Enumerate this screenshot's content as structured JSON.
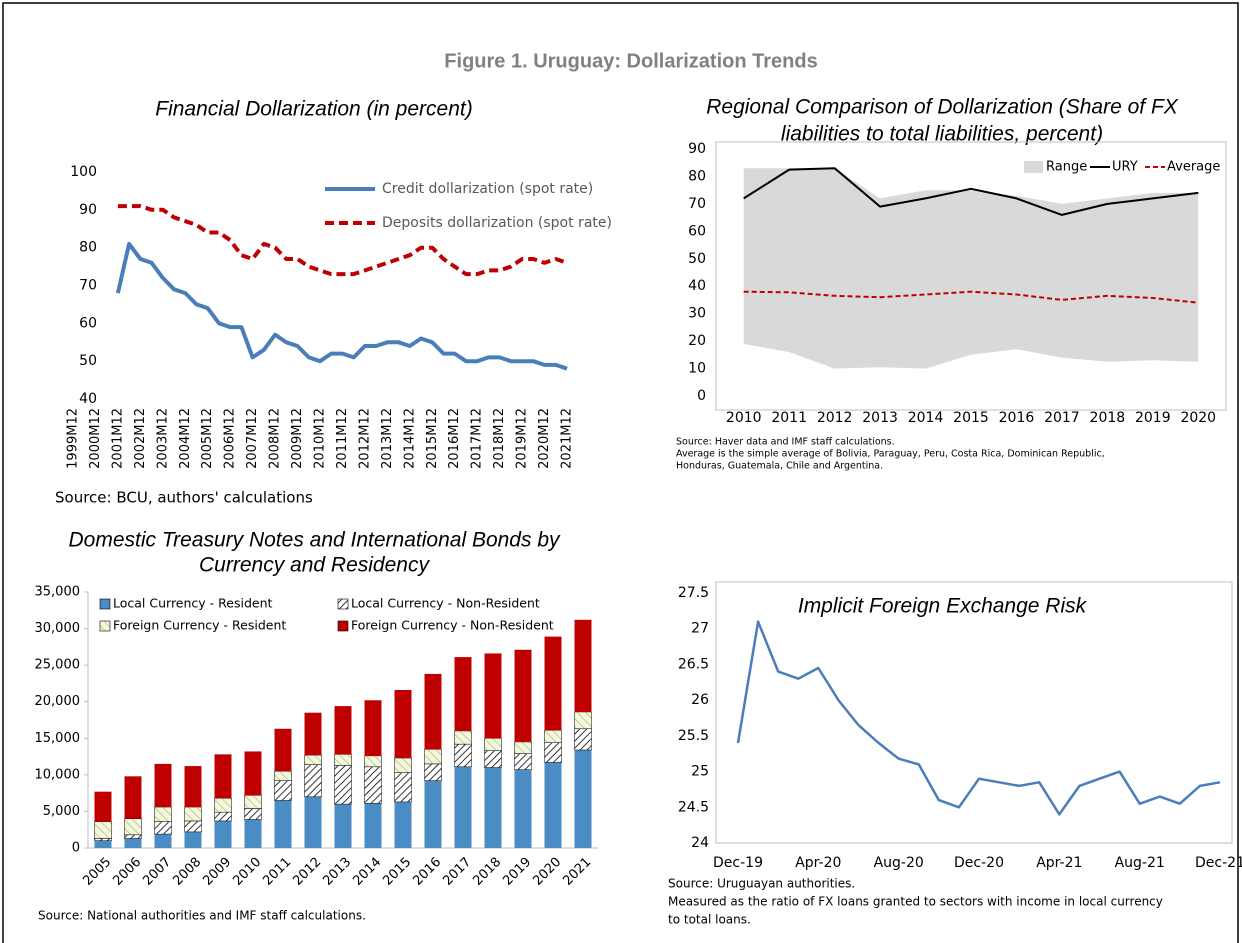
{
  "title": "Figure 1. Uruguay: Dollarization Trends",
  "chart_data": [
    {
      "type": "line",
      "title": "Financial Dollarization (in percent)",
      "source": "Source: BCU, authors' calculations",
      "categories": [
        "1999M12",
        null,
        "2000M12",
        null,
        "2001M12",
        null,
        "2002M12",
        null,
        "2003M12",
        null,
        "2004M12",
        null,
        "2005M12",
        null,
        "2006M12",
        null,
        "2007M12",
        null,
        "2008M12",
        null,
        "2009M12",
        null,
        "2010M12",
        null,
        "2011M12",
        null,
        "2012M12",
        null,
        "2013M12",
        null,
        "2014M12",
        null,
        "2015M12",
        null,
        "2016M12",
        null,
        "2017M12",
        null,
        "2018M12",
        null,
        "2019M12",
        null,
        "2020M12",
        null,
        "2021M12"
      ],
      "series": [
        {
          "name": "Credit dollarization (spot rate)",
          "color": "#4a7ebb",
          "dashed": false,
          "values": [
            null,
            null,
            null,
            null,
            68,
            81,
            77,
            76,
            72,
            69,
            68,
            65,
            64,
            60,
            59,
            59,
            51,
            53,
            57,
            55,
            54,
            51,
            50,
            52,
            52,
            51,
            54,
            54,
            55,
            55,
            54,
            56,
            55,
            52,
            52,
            50,
            50,
            51,
            51,
            50,
            50,
            50,
            49,
            49,
            48
          ]
        },
        {
          "name": "Deposits dollarization (spot rate)",
          "color": "#c00000",
          "dashed": true,
          "values": [
            null,
            null,
            null,
            null,
            91,
            91,
            91,
            90,
            90,
            88,
            87,
            86,
            84,
            84,
            82,
            78,
            77,
            81,
            80,
            77,
            77,
            75,
            74,
            73,
            73,
            73,
            74,
            75,
            76,
            77,
            78,
            80,
            80,
            77,
            75,
            73,
            73,
            74,
            74,
            75,
            77,
            77,
            76,
            77,
            76
          ]
        }
      ],
      "ylim": [
        40,
        100
      ],
      "yticks": [
        40,
        50,
        60,
        70,
        80,
        90,
        100
      ],
      "grid": false
    },
    {
      "type": "line",
      "title": [
        "Regional Comparison of Dollarization (Share of FX",
        "liabilities to total liabilities, percent)"
      ],
      "notes": [
        "Source: Haver data and IMF staff calculations.",
        "Average is the simple average of Bolivia, Paraguay, Peru, Costa Rica, Dominican Republic,",
        "Honduras, Guatemala, Chile and Argentina."
      ],
      "categories": [
        2010,
        2011,
        2012,
        2013,
        2014,
        2015,
        2016,
        2017,
        2018,
        2019,
        2020
      ],
      "series": [
        {
          "name": "Range",
          "color": "#d9d9d9",
          "range": true,
          "low": [
            19,
            16,
            10,
            10.5,
            10,
            15,
            17,
            14,
            12.5,
            13,
            12.5
          ],
          "high": [
            83,
            83,
            83,
            72,
            75,
            75,
            73,
            70,
            72,
            74,
            74
          ]
        },
        {
          "name": "URY",
          "color": "#000000",
          "dashed": false,
          "values": [
            72,
            82.5,
            83,
            69,
            72,
            75.5,
            72,
            66,
            70,
            72,
            74
          ]
        },
        {
          "name": "Average",
          "color": "#c00000",
          "dashed": true,
          "values": [
            38,
            37.8,
            36.5,
            36,
            37,
            38,
            37,
            35,
            36.5,
            35.7,
            34
          ]
        }
      ],
      "ylim": [
        0,
        90
      ],
      "yticks": [
        0,
        10,
        20,
        30,
        40,
        50,
        60,
        70,
        80,
        90
      ],
      "grid": false
    },
    {
      "type": "bar",
      "stacked": true,
      "title": [
        "Domestic Treasury Notes and International Bonds by",
        "Currency and Residency"
      ],
      "source": "Source: National authorities and IMF staff calculations.",
      "categories": [
        "2005",
        "2006",
        "2007",
        "2008",
        "2009",
        "2010",
        "2011",
        "2012",
        "2013",
        "2014",
        "2015",
        "2016",
        "2017",
        "2018",
        "2019",
        "2020",
        "2021"
      ],
      "series": [
        {
          "name": "Local Currency -  Resident",
          "color": "#4a8cc4",
          "values": [
            1000,
            1300,
            1900,
            2200,
            3700,
            3900,
            6500,
            7000,
            6000,
            6100,
            6300,
            9200,
            11100,
            11000,
            10700,
            11700,
            13400
          ]
        },
        {
          "name": "Local Currency -  Non-Resident",
          "color": "#000000",
          "pattern": "hatch-dark",
          "values": [
            300,
            500,
            1700,
            1500,
            1200,
            1500,
            2700,
            4400,
            5300,
            5000,
            4000,
            2300,
            3100,
            2300,
            2200,
            2700,
            2900
          ]
        },
        {
          "name": "Foreign Currency -  Resident",
          "color": "#9bbb59",
          "pattern": "hatch-light",
          "values": [
            2300,
            2200,
            2000,
            1900,
            1900,
            1800,
            1300,
            1300,
            1500,
            1500,
            2000,
            2000,
            1800,
            1700,
            1600,
            1700,
            2300
          ]
        },
        {
          "name": "Foreign Currency -  Non-Resident",
          "color": "#c00000",
          "values": [
            4100,
            5800,
            5900,
            5600,
            6000,
            6000,
            5800,
            5800,
            6600,
            7600,
            9300,
            10300,
            10100,
            11600,
            12600,
            12800,
            12600
          ]
        }
      ],
      "ylim": [
        0,
        35000
      ],
      "yticks": [
        0,
        {
          "value": 5000,
          "label": "5,000"
        },
        {
          "value": 10000,
          "label": "10,000"
        },
        {
          "value": 15000,
          "label": "15,000"
        },
        {
          "value": 20000,
          "label": "20,000"
        },
        {
          "value": 25000,
          "label": "25,000"
        },
        {
          "value": 30000,
          "label": "30,000"
        },
        {
          "value": 35000,
          "label": "35,000"
        }
      ],
      "grid": false
    },
    {
      "type": "line",
      "title": "Implicit Foreign Exchange Risk",
      "notes": [
        "Source: Uruguayan authorities.",
        "Measured as the ratio of FX loans granted to sectors with income in local currency",
        "to total loans."
      ],
      "categories": [
        "Dec-19",
        null,
        null,
        null,
        "Apr-20",
        null,
        null,
        null,
        "Aug-20",
        null,
        null,
        null,
        "Dec-20",
        null,
        null,
        null,
        "Apr-21",
        null,
        null,
        null,
        "Aug-21",
        null,
        null,
        null,
        "Dec-21"
      ],
      "series": [
        {
          "name": null,
          "color": "#4a7ebb",
          "dashed": false,
          "values": [
            25.4,
            27.1,
            26.4,
            26.3,
            26.45,
            26.0,
            25.65,
            25.4,
            25.18,
            25.1,
            24.6,
            24.5,
            24.9,
            24.85,
            24.8,
            24.85,
            24.4,
            24.8,
            24.9,
            25.0,
            24.55,
            24.65,
            24.55,
            24.8,
            24.85
          ]
        }
      ],
      "ylim": [
        24,
        27.5
      ],
      "yticks": [
        24,
        24.5,
        25,
        25.5,
        26,
        26.5,
        27,
        27.5
      ],
      "grid": false
    }
  ]
}
